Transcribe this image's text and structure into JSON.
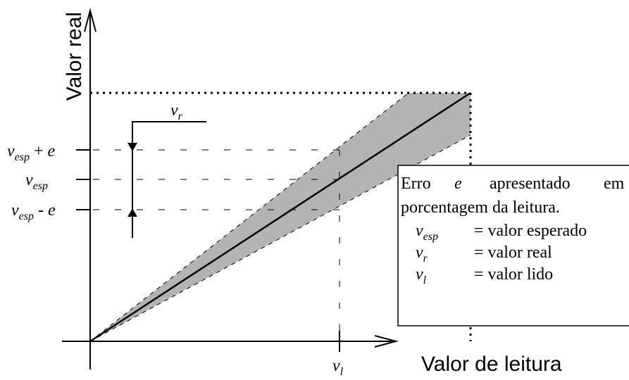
{
  "axes": {
    "y_label": "Valor real",
    "x_label": "Valor de leitura"
  },
  "y_markers": [
    {
      "base": "v",
      "sub": "esp",
      "op": "+",
      "var": "e"
    },
    {
      "base": "v",
      "sub": "esp"
    },
    {
      "base": "v",
      "sub": "esp",
      "op": "-",
      "var": "e"
    }
  ],
  "real_label": {
    "base": "v",
    "sub": "r"
  },
  "read_label": {
    "base": "v",
    "sub": "l"
  },
  "legend": {
    "line1": [
      "Erro",
      "e",
      "apresentado",
      "em"
    ],
    "line2": "porcentagem da leitura.",
    "definitions": [
      {
        "base": "v",
        "sub": "esp",
        "text": "= valor esperado"
      },
      {
        "base": "v",
        "sub": "r",
        "text": "= valor real"
      },
      {
        "base": "v",
        "sub": "l",
        "text": "= valor lido"
      }
    ]
  }
}
